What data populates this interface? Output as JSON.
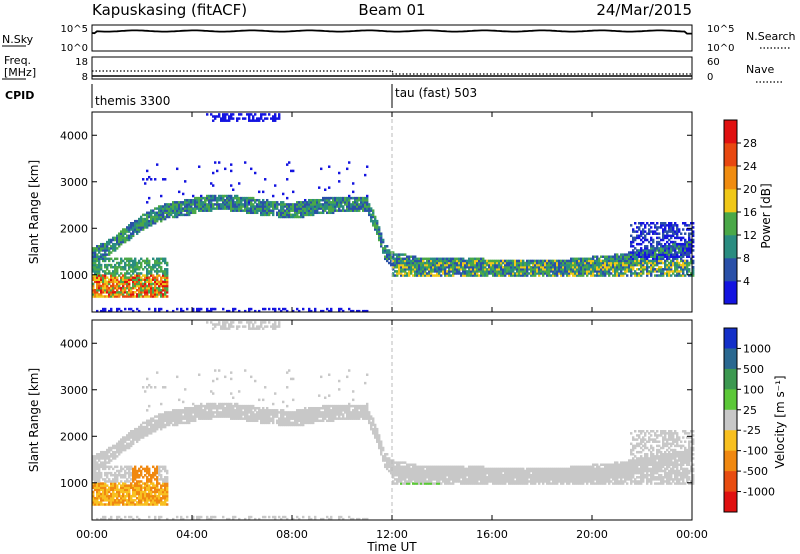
{
  "header": {
    "station": "Kapuskasing (fitACF)",
    "beam": "Beam 01",
    "date": "24/Mar/2015"
  },
  "nsky_panel": {
    "left_label": "N.Sky",
    "left_ticks": [
      "10^5",
      "10^0"
    ],
    "right_label": "N.Search",
    "right_ticks": [
      "10^5",
      "10^0"
    ]
  },
  "freq_panel": {
    "left_label_1": "Freq.",
    "left_label_2": "[MHz]",
    "left_ticks": [
      "18",
      "8"
    ],
    "right_label": "Nave",
    "right_ticks": [
      "60",
      "0"
    ]
  },
  "cpid_panel": {
    "label": "CPID",
    "modes": [
      {
        "name": "themis 3300",
        "start": "00:00"
      },
      {
        "name": "tau (fast) 503",
        "start": "12:00"
      }
    ]
  },
  "chart_data": [
    {
      "type": "heatmap",
      "panel": "power",
      "ylabel": "Slant Range [km]",
      "y_ticks": [
        "1000",
        "2000",
        "3000",
        "4000"
      ],
      "ylim": [
        200,
        4500
      ],
      "xlim_hours": [
        0,
        24
      ],
      "colorbar": {
        "label": "Power [dB]",
        "ticks": [
          "4",
          "8",
          "12",
          "16",
          "20",
          "24",
          "28"
        ],
        "colors": [
          "#1414e0",
          "#2a50a8",
          "#2a8c80",
          "#4aa848",
          "#f0c818",
          "#f08c10",
          "#e84810",
          "#e01010"
        ]
      }
    },
    {
      "type": "heatmap",
      "panel": "velocity",
      "ylabel": "Slant Range [km]",
      "y_ticks": [
        "1000",
        "2000",
        "3000",
        "4000"
      ],
      "ylim": [
        200,
        4500
      ],
      "xlim_hours": [
        0,
        24
      ],
      "colorbar": {
        "label": "Velocity [m s⁻¹]",
        "ticks": [
          "1000",
          "500",
          "100",
          "25",
          "-25",
          "-100",
          "-500",
          "-1000"
        ],
        "colors": [
          "#1430c8",
          "#2a6890",
          "#3c9850",
          "#5cc838",
          "#c8c8c8",
          "#f8c020",
          "#f08810",
          "#e84c10",
          "#e01010"
        ]
      }
    }
  ],
  "x_axis": {
    "ticks": [
      "00:00",
      "04:00",
      "08:00",
      "12:00",
      "16:00",
      "20:00",
      "00:00"
    ],
    "label": "Time UT"
  },
  "colors": {
    "ground_scatter": "#c8c8c8",
    "empty": "#ffffff"
  }
}
